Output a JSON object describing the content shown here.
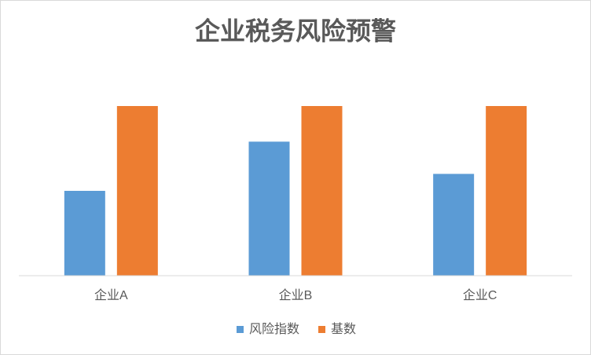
{
  "chart_data": {
    "type": "bar",
    "title": "企业税务风险预警",
    "categories": [
      "企业A",
      "企业B",
      "企业C"
    ],
    "series": [
      {
        "name": "风险指数",
        "color": "#5b9bd5",
        "values": [
          50,
          79,
          60
        ]
      },
      {
        "name": "基数",
        "color": "#ed7d31",
        "values": [
          100,
          100,
          100
        ]
      }
    ],
    "ylim": [
      0,
      100
    ]
  }
}
